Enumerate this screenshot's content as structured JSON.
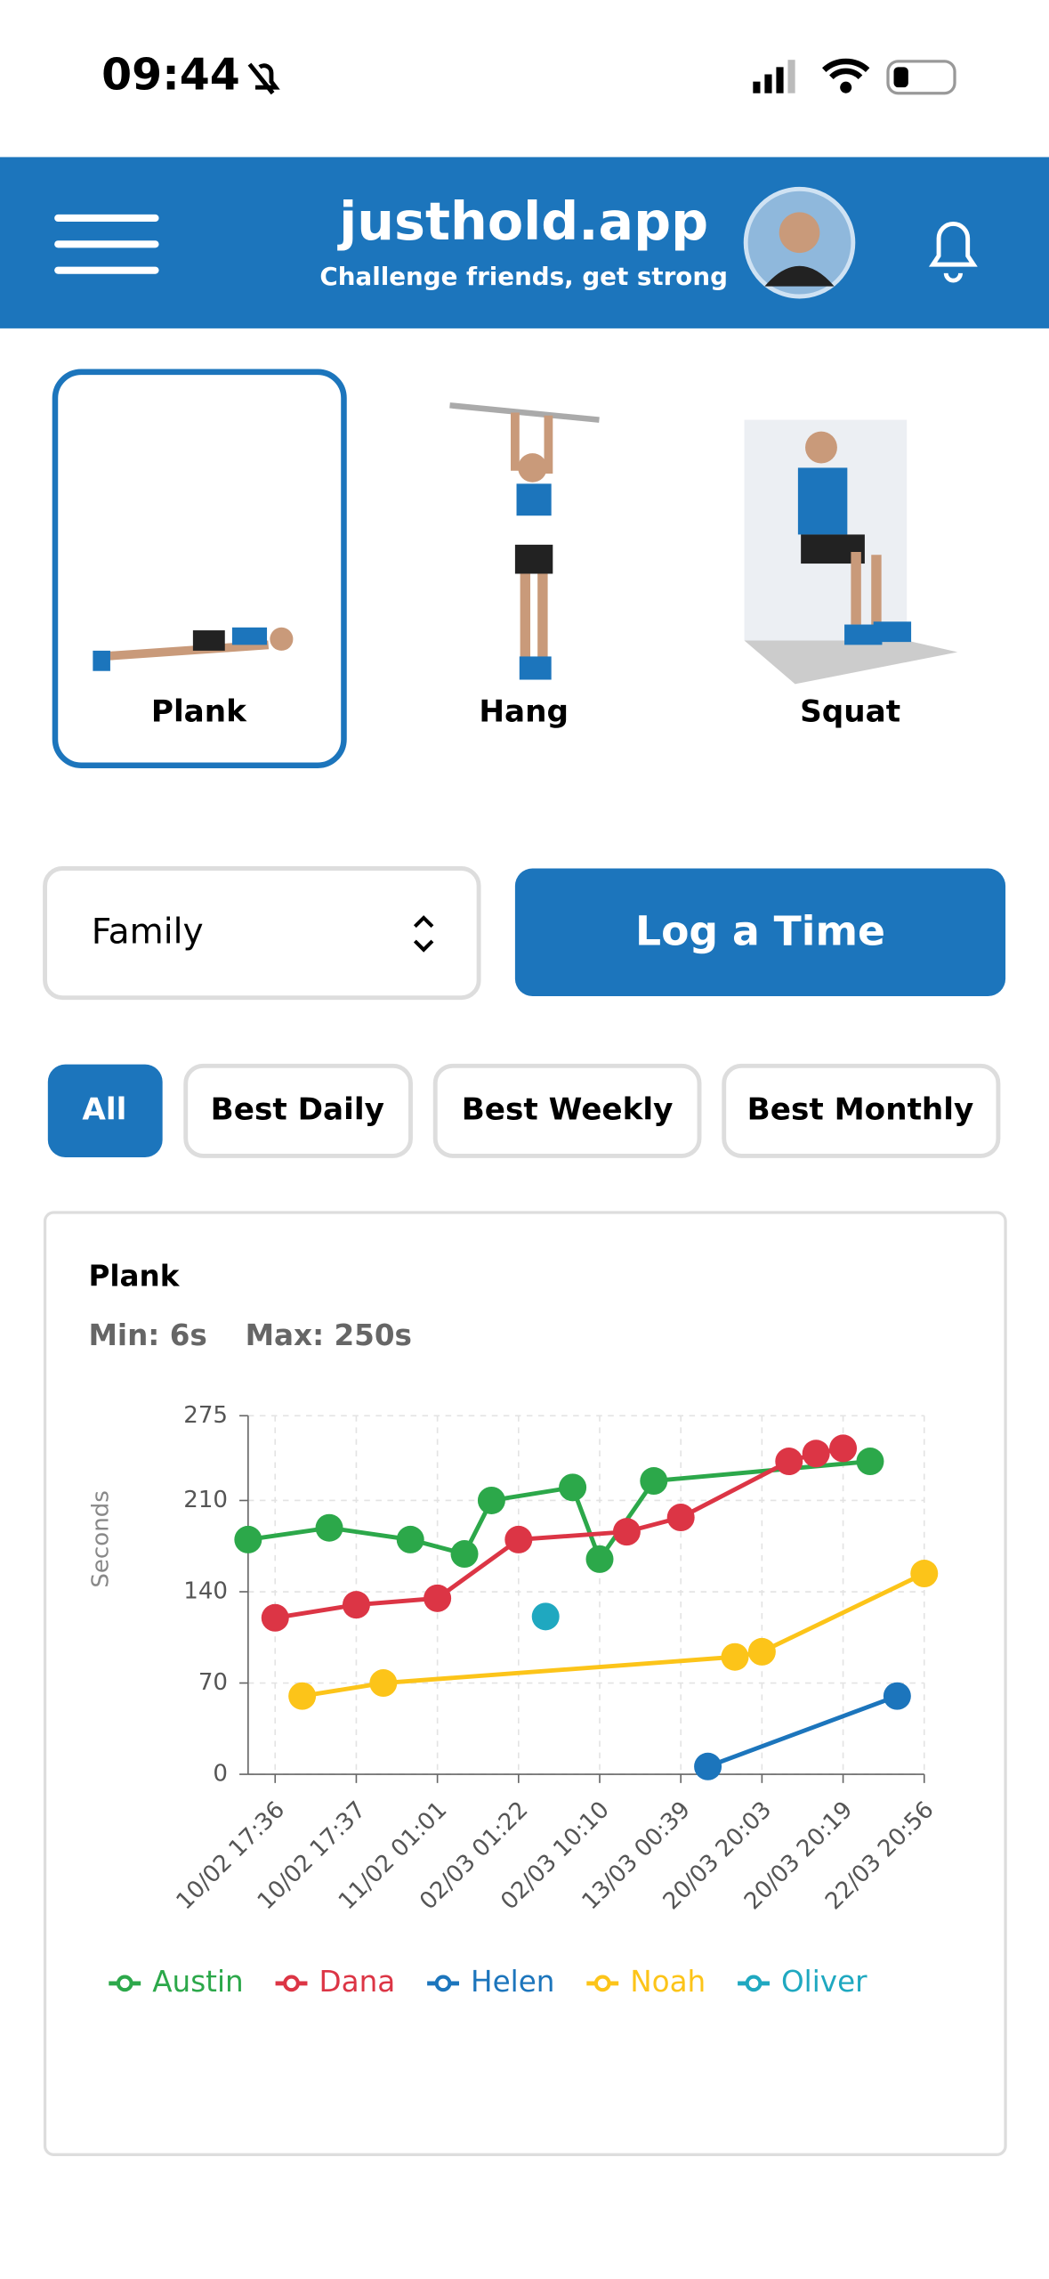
{
  "status_bar": {
    "time": "09:44"
  },
  "header": {
    "title": "justhold.app",
    "subtitle": "Challenge friends, get strong"
  },
  "exercises": [
    "Plank",
    "Hang",
    "Squat"
  ],
  "group_select": "Family",
  "log_button": "Log a Time",
  "filters": [
    "All",
    "Best Daily",
    "Best Weekly",
    "Best Monthly"
  ],
  "chart_data": {
    "type": "line",
    "title": "Plank",
    "stats": [
      "Min: 6s",
      "Max: 250s"
    ],
    "y_label": "Seconds",
    "categories": [
      null,
      "10/02 17:36",
      null,
      null,
      "10/02 17:37",
      null,
      null,
      "11/02 01:01",
      null,
      null,
      "02/03 01:22",
      null,
      null,
      "02/03 10:10",
      null,
      null,
      "13/03 00:39",
      null,
      null,
      "20/03 20:03",
      null,
      null,
      "20/03 20:19",
      null,
      null,
      "22/03 20:56"
    ],
    "series": [
      {
        "name": "Austin",
        "color": "#2ca84a",
        "values": [
          180,
          null,
          null,
          189,
          null,
          null,
          180,
          null,
          169,
          210,
          null,
          null,
          220,
          165,
          null,
          225,
          null,
          null,
          null,
          null,
          null,
          null,
          null,
          240,
          null,
          null
        ]
      },
      {
        "name": "Dana",
        "color": "#dc3545",
        "values": [
          null,
          120,
          null,
          null,
          130,
          null,
          null,
          135,
          null,
          null,
          180,
          null,
          null,
          null,
          186,
          null,
          197,
          null,
          null,
          null,
          240,
          246,
          250,
          null,
          null,
          null
        ]
      },
      {
        "name": "Helen",
        "color": "#1c75bc",
        "values": [
          null,
          null,
          null,
          null,
          null,
          null,
          null,
          null,
          null,
          null,
          null,
          null,
          null,
          null,
          null,
          null,
          null,
          6,
          null,
          null,
          null,
          null,
          null,
          null,
          60,
          null
        ]
      },
      {
        "name": "Noah",
        "color": "#fcc419",
        "values": [
          null,
          null,
          60,
          null,
          null,
          70,
          null,
          null,
          null,
          null,
          null,
          null,
          null,
          null,
          null,
          null,
          null,
          null,
          90,
          94,
          null,
          null,
          null,
          null,
          null,
          154
        ]
      },
      {
        "name": "Oliver",
        "color": "#1fa8c0",
        "values": [
          null,
          null,
          null,
          null,
          null,
          null,
          null,
          null,
          null,
          null,
          null,
          121,
          null,
          null,
          null,
          null,
          null,
          null,
          null,
          null,
          null,
          null,
          null,
          null,
          null,
          null
        ]
      }
    ],
    "ylim": [
      0,
      275
    ],
    "yticks": [
      0,
      70,
      140,
      210,
      275
    ],
    "grid": true,
    "legend": "bottom"
  }
}
